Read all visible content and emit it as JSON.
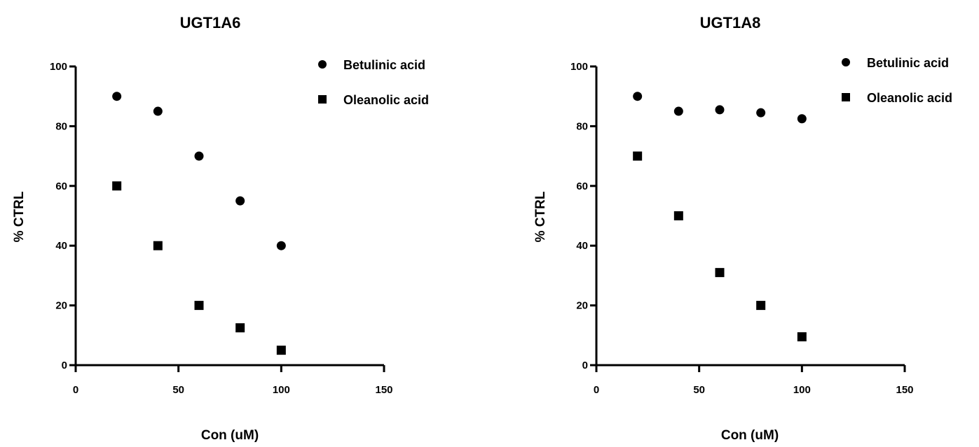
{
  "chart_data": [
    {
      "type": "scatter",
      "title": "UGT1A6",
      "xlabel": "Con (uM)",
      "ylabel": "% CTRL",
      "xlim": [
        0,
        150
      ],
      "ylim": [
        0,
        100
      ],
      "xticks": [
        "0",
        "50",
        "100",
        "150"
      ],
      "yticks": [
        "0",
        "20",
        "40",
        "60",
        "80",
        "100"
      ],
      "legend_position": "top-right",
      "series": [
        {
          "name": "Betulinic acid",
          "marker": "circle",
          "color": "#000000",
          "x": [
            20,
            40,
            60,
            80,
            100
          ],
          "y": [
            90,
            85,
            70,
            55,
            40
          ]
        },
        {
          "name": "Oleanolic acid",
          "marker": "square",
          "color": "#000000",
          "x": [
            20,
            40,
            60,
            80,
            100
          ],
          "y": [
            60,
            40,
            20,
            12.5,
            5
          ]
        }
      ]
    },
    {
      "type": "scatter",
      "title": "UGT1A8",
      "xlabel": "Con (uM)",
      "ylabel": "% CTRL",
      "xlim": [
        0,
        150
      ],
      "ylim": [
        0,
        100
      ],
      "xticks": [
        "0",
        "50",
        "100",
        "150"
      ],
      "yticks": [
        "0",
        "20",
        "40",
        "60",
        "80",
        "100"
      ],
      "legend_position": "top-right",
      "series": [
        {
          "name": "Betulinic acid",
          "marker": "circle",
          "color": "#000000",
          "x": [
            20,
            40,
            60,
            80,
            100
          ],
          "y": [
            90,
            85,
            85.5,
            84.5,
            82.5
          ]
        },
        {
          "name": "Oleanolic acid",
          "marker": "square",
          "color": "#000000",
          "x": [
            20,
            40,
            60,
            80,
            100
          ],
          "y": [
            70,
            50,
            31,
            20,
            9.5
          ]
        }
      ]
    }
  ]
}
